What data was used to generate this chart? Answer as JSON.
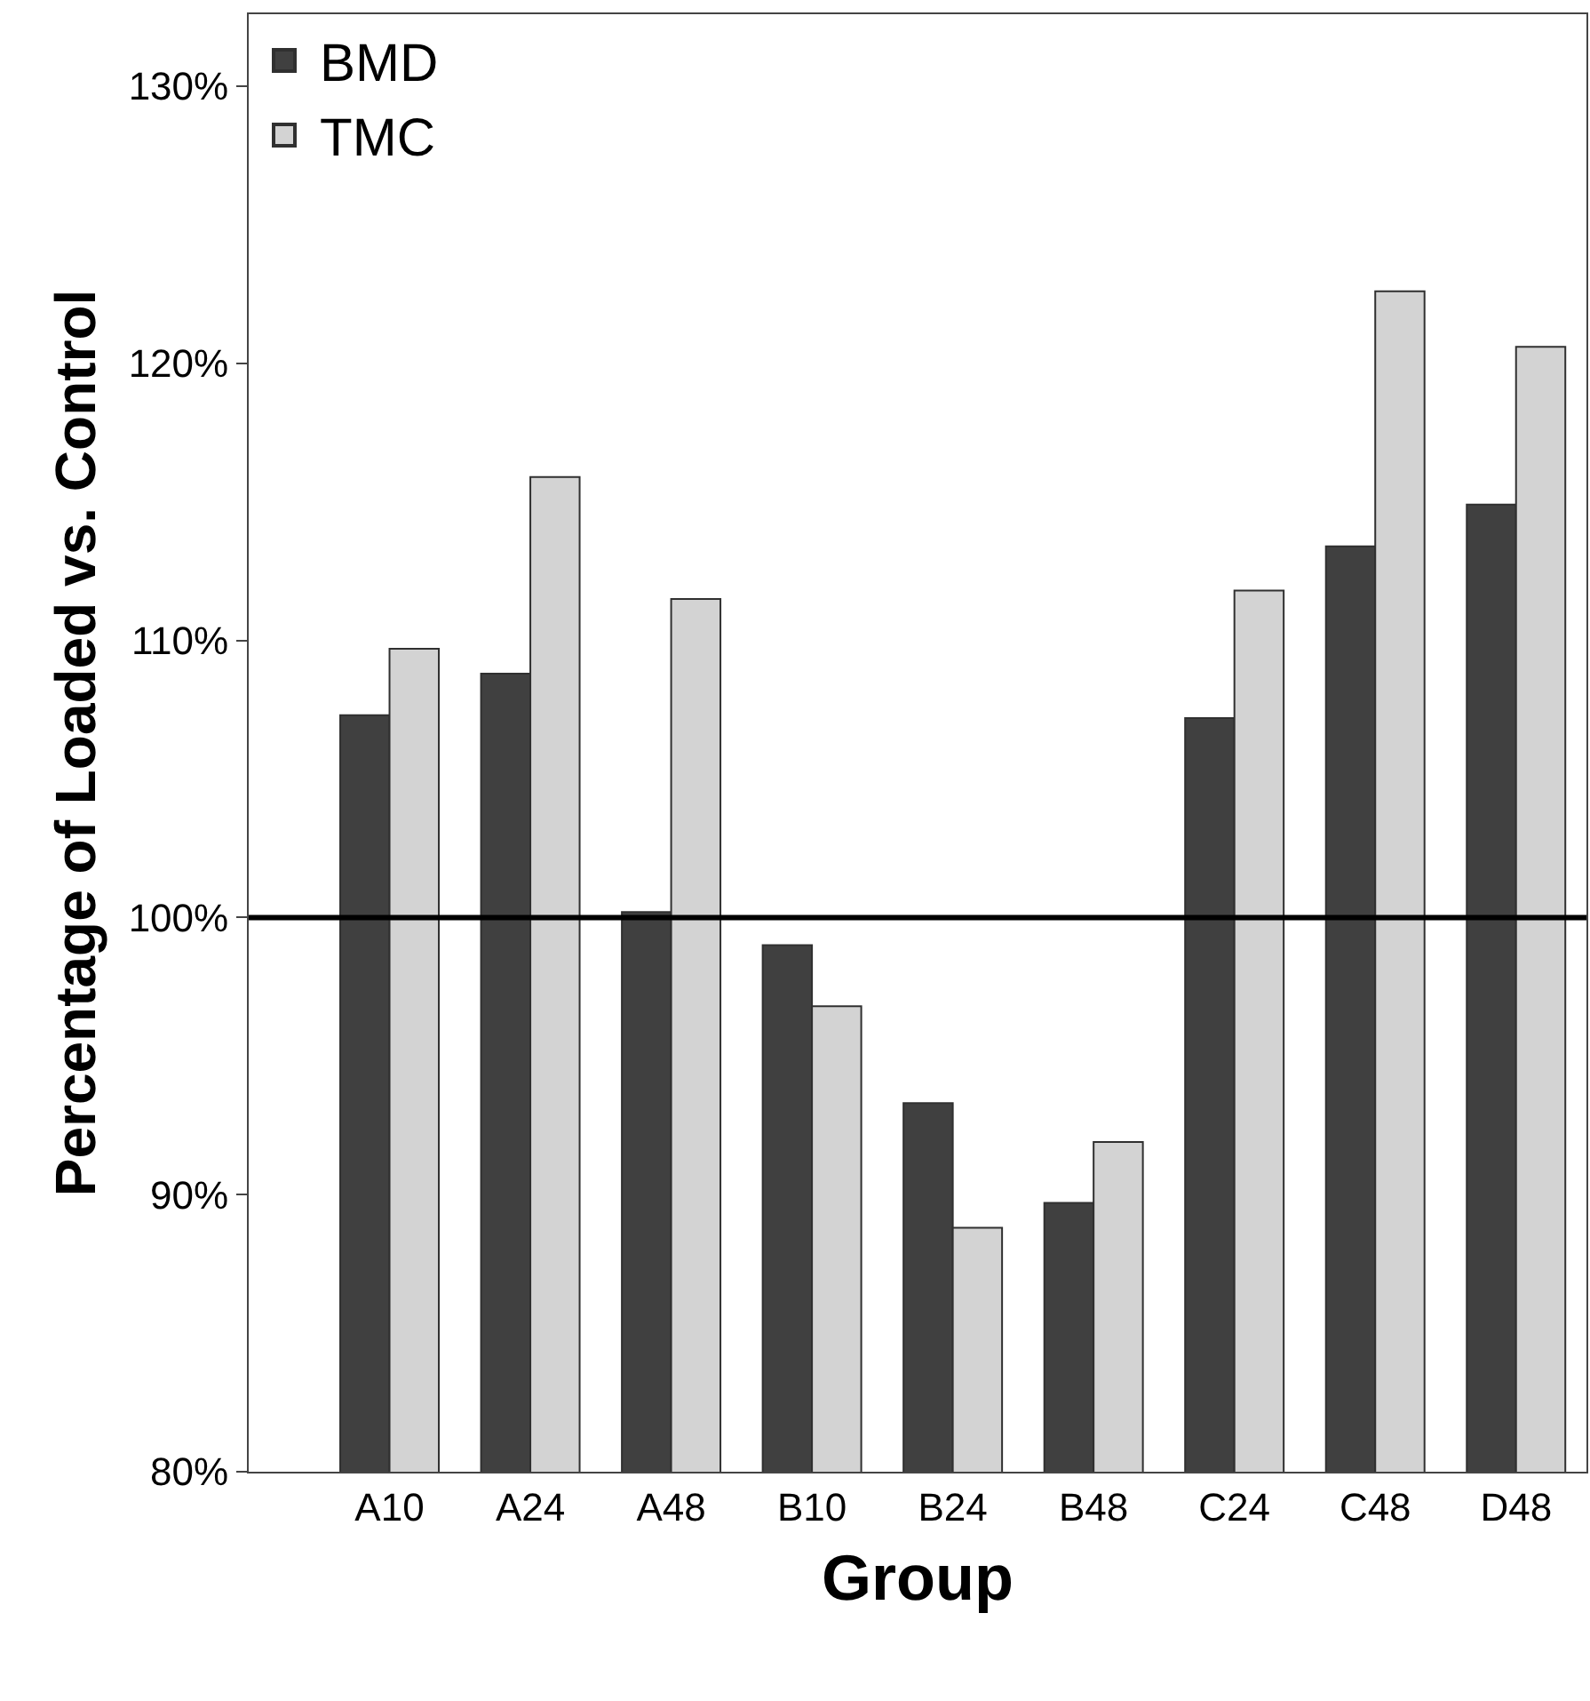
{
  "chart_data": {
    "type": "bar",
    "xlabel": "Group",
    "ylabel": "Percentage of Loaded vs. Control",
    "categories": [
      "A10",
      "A24",
      "A48",
      "B10",
      "B24",
      "B48",
      "C24",
      "C48",
      "D48"
    ],
    "series": [
      {
        "name": "BMD",
        "color": "#404040",
        "values": [
          107.3,
          108.8,
          100.2,
          99.0,
          93.3,
          89.7,
          107.2,
          113.4,
          114.9
        ]
      },
      {
        "name": "TMC",
        "color": "#d3d3d3",
        "values": [
          109.7,
          115.9,
          111.5,
          96.8,
          88.8,
          91.9,
          111.8,
          122.6,
          120.6
        ]
      }
    ],
    "ylim": [
      80,
      132.6
    ],
    "yticks": [
      {
        "value": 80,
        "label": "80%"
      },
      {
        "value": 90,
        "label": "90%"
      },
      {
        "value": 100,
        "label": "100%"
      },
      {
        "value": 110,
        "label": "110%"
      },
      {
        "value": 120,
        "label": "120%"
      },
      {
        "value": 130,
        "label": "130%"
      }
    ],
    "ref_lines": [
      {
        "axis": "y",
        "value": 100,
        "color": "#000000"
      }
    ],
    "legend": "top left"
  }
}
